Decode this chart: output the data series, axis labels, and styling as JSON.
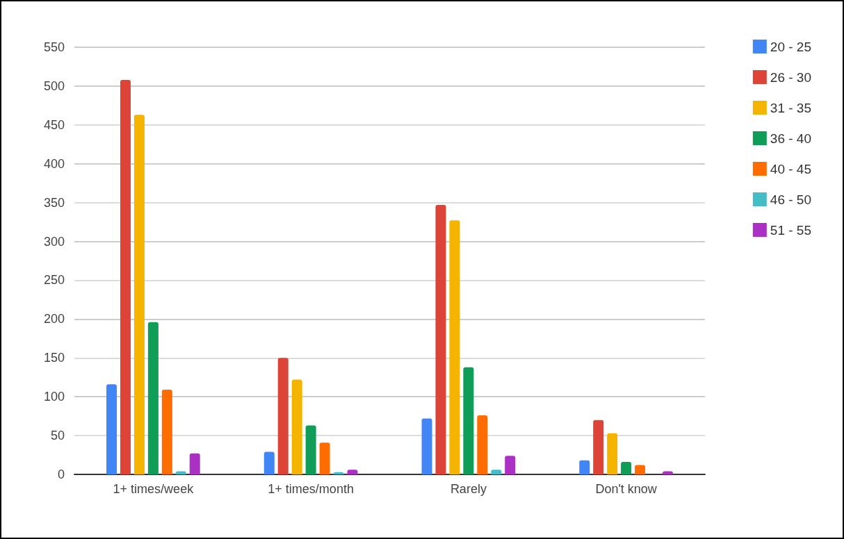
{
  "chart_data": {
    "type": "bar",
    "categories": [
      "1+ times/week",
      "1+ times/month",
      "Rarely",
      "Don't know"
    ],
    "series": [
      {
        "name": "20 - 25",
        "color": "#4285f4",
        "values": [
          116,
          29,
          72,
          18
        ]
      },
      {
        "name": "26 - 30",
        "color": "#db4437",
        "values": [
          508,
          150,
          347,
          70
        ]
      },
      {
        "name": "31 - 35",
        "color": "#f4b400",
        "values": [
          463,
          122,
          327,
          53
        ]
      },
      {
        "name": "36 - 40",
        "color": "#0f9d58",
        "values": [
          196,
          63,
          138,
          16
        ]
      },
      {
        "name": "40 - 45",
        "color": "#ff6d01",
        "values": [
          109,
          41,
          76,
          12
        ]
      },
      {
        "name": "46 - 50",
        "color": "#46bdc6",
        "values": [
          4,
          3,
          6,
          0
        ]
      },
      {
        "name": "51 - 55",
        "color": "#ab30c4",
        "values": [
          27,
          6,
          24,
          4
        ]
      }
    ],
    "ylim": [
      0,
      550
    ],
    "yticks": [
      0,
      50,
      100,
      150,
      200,
      250,
      300,
      350,
      400,
      450,
      500,
      550
    ],
    "grid": true,
    "legend": "right"
  }
}
